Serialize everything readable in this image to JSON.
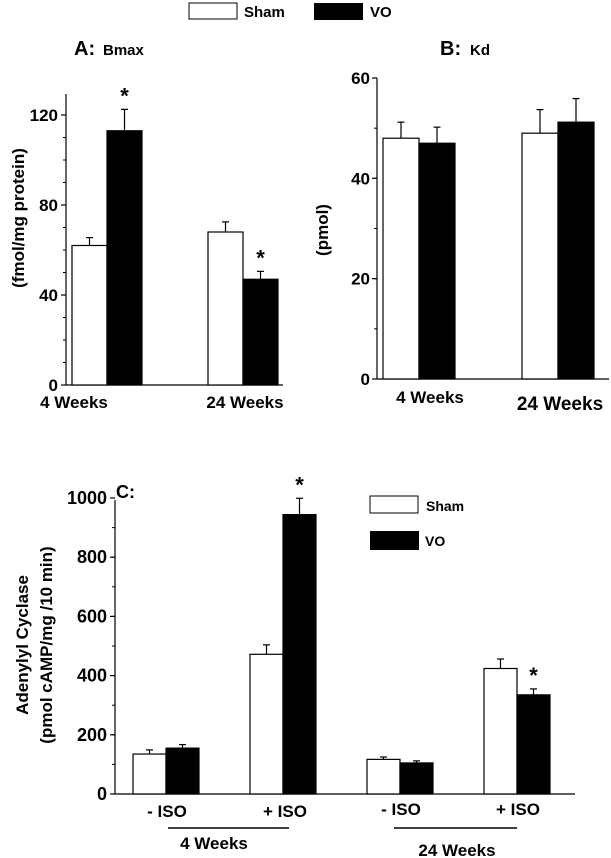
{
  "legend_top": {
    "items": [
      {
        "label": "Sham",
        "color": "#ffffff"
      },
      {
        "label": "VO",
        "color": "#000000"
      }
    ]
  },
  "chart_data": [
    {
      "id": "A",
      "type": "bar",
      "panel_letter": "A:",
      "title": "Bmax",
      "ylabel": "(fmol/mg protein)",
      "xlabel": "",
      "ylim": [
        0,
        130
      ],
      "yticks": [
        0,
        40,
        80,
        120
      ],
      "minor_ytick_step": 10,
      "categories": [
        "4 Weeks",
        "24 Weeks"
      ],
      "series": [
        {
          "name": "Sham",
          "color": "#ffffff",
          "values": [
            62,
            68
          ],
          "errors": [
            3.5,
            4.5
          ]
        },
        {
          "name": "VO",
          "color": "#000000",
          "values": [
            113,
            47
          ],
          "errors": [
            9.5,
            3.5
          ]
        }
      ],
      "significance": [
        {
          "series": "VO",
          "category": "4 Weeks",
          "label": "*"
        },
        {
          "series": "VO",
          "category": "24 Weeks",
          "label": "*"
        }
      ],
      "grid": false
    },
    {
      "id": "B",
      "type": "bar",
      "panel_letter": "B:",
      "title": "Kd",
      "ylabel": "(pmol)",
      "xlabel": "",
      "ylim": [
        0,
        60
      ],
      "yticks": [
        0,
        20,
        40,
        60
      ],
      "minor_ytick_step": 10,
      "categories": [
        "4 Weeks",
        "24 Weeks"
      ],
      "series": [
        {
          "name": "Sham",
          "color": "#ffffff",
          "values": [
            48,
            49
          ],
          "errors": [
            3.2,
            4.7
          ]
        },
        {
          "name": "VO",
          "color": "#000000",
          "values": [
            47,
            51.2
          ],
          "errors": [
            3.2,
            4.7
          ]
        }
      ],
      "significance": [],
      "grid": false
    },
    {
      "id": "C",
      "type": "bar",
      "panel_letter": "C:",
      "title": "",
      "ylabel_line1": "Adenylyl  Cyclase",
      "ylabel_line2": "(pmol cAMP/mg /10 min)",
      "xlabel": "",
      "ylim": [
        0,
        1000
      ],
      "yticks": [
        0,
        200,
        400,
        600,
        800,
        1000
      ],
      "minor_ytick_step": 100,
      "categories": [
        "- ISO",
        "+ ISO",
        "- ISO",
        "+ ISO"
      ],
      "groups": [
        {
          "label": "4 Weeks",
          "categories": [
            0,
            1
          ]
        },
        {
          "label": "24 Weeks",
          "categories": [
            2,
            3
          ]
        }
      ],
      "series": [
        {
          "name": "Sham",
          "color": "#ffffff",
          "values": [
            135,
            472,
            117,
            424
          ],
          "errors": [
            14,
            32,
            8,
            32
          ]
        },
        {
          "name": "VO",
          "color": "#000000",
          "values": [
            155,
            944,
            105,
            335
          ],
          "errors": [
            12,
            55,
            7,
            20
          ]
        }
      ],
      "significance": [
        {
          "series": "VO",
          "category": 1,
          "label": "*"
        },
        {
          "series": "VO",
          "category": 3,
          "label": "*"
        }
      ],
      "legend": {
        "items": [
          {
            "label": "Sham",
            "color": "#ffffff"
          },
          {
            "label": "VO",
            "color": "#000000"
          }
        ],
        "position": "top-right"
      },
      "grid": false
    }
  ]
}
